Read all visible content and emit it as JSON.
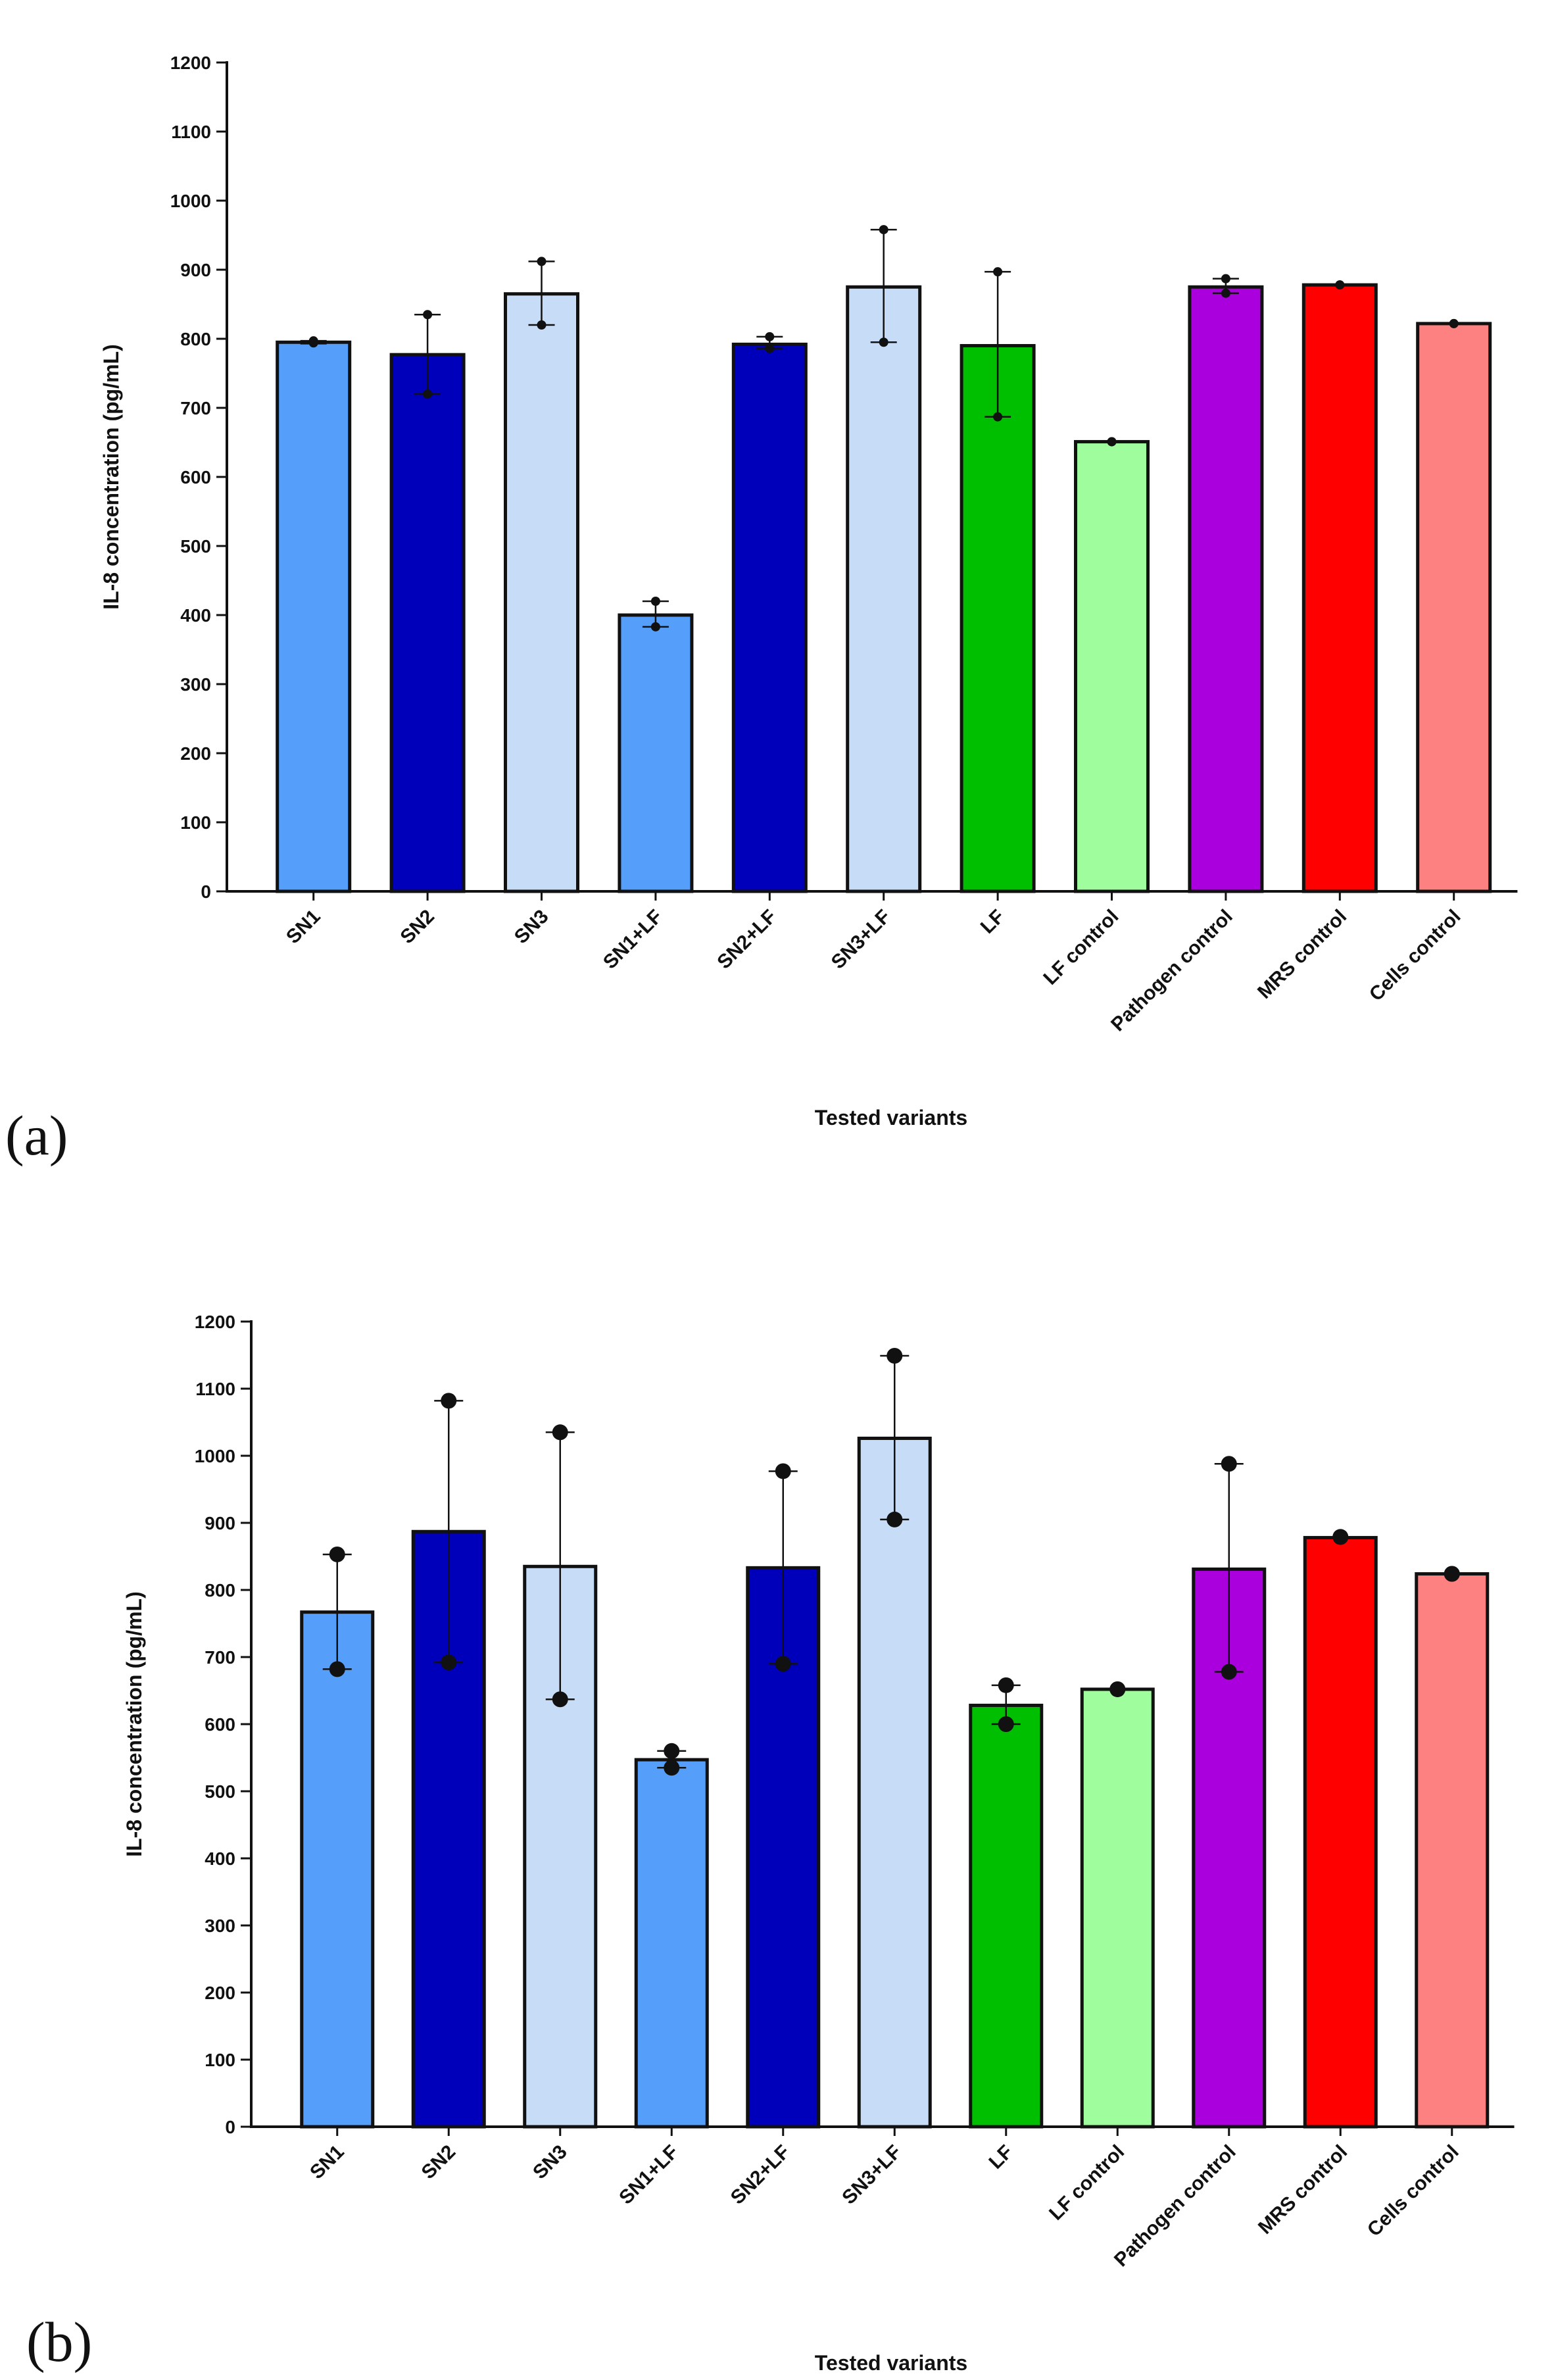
{
  "chart_data": [
    {
      "type": "bar",
      "panel_label": "(a)",
      "xlabel": "Tested variants",
      "ylabel": "IL-8 concentration (pg/mL)",
      "ylim": [
        0,
        1200
      ],
      "yticks": [
        "0",
        "100",
        "200",
        "300",
        "400",
        "500",
        "600",
        "700",
        "800",
        "900",
        "1000",
        "1100",
        "1200"
      ],
      "categories": [
        "SN1",
        "SN2",
        "SN3",
        "SN1+LF",
        "SN2+LF",
        "SN3+LF",
        "LF",
        "LF control",
        "Pathogen control",
        "MRS control",
        "Cells control"
      ],
      "values": [
        795,
        777,
        865,
        400,
        792,
        875,
        790,
        651,
        875,
        878,
        822
      ],
      "error_high": [
        797,
        835,
        912,
        420,
        803,
        958,
        897,
        652,
        887,
        879,
        823
      ],
      "error_low": [
        793,
        720,
        820,
        383,
        786,
        795,
        687,
        650,
        866,
        877,
        821
      ],
      "points": [
        [
          794,
          797
        ],
        [
          720,
          835
        ],
        [
          820,
          912
        ],
        [
          383,
          420
        ],
        [
          786,
          803
        ],
        [
          795,
          958
        ],
        [
          687,
          897
        ],
        [
          651,
          651
        ],
        [
          866,
          887
        ],
        [
          878,
          878
        ],
        [
          822,
          822
        ]
      ],
      "colors": [
        "#559ffa",
        "#0000bb",
        "#c7dcf7",
        "#559ffa",
        "#0000bb",
        "#c7dcf7",
        "#00bf00",
        "#a0fd9e",
        "#aa00dd",
        "#ff0000",
        "#fe8181"
      ],
      "grid": false
    },
    {
      "type": "bar",
      "panel_label": "(b)",
      "xlabel": "Tested variants",
      "ylabel": "IL-8 concentration (pg/mL)",
      "ylim": [
        0,
        1200
      ],
      "yticks": [
        "0",
        "100",
        "200",
        "300",
        "400",
        "500",
        "600",
        "700",
        "800",
        "900",
        "1000",
        "1100",
        "1200"
      ],
      "categories": [
        "SN1",
        "SN2",
        "SN3",
        "SN1+LF",
        "SN2+LF",
        "SN3+LF",
        "LF",
        "LF control",
        "Pathogen control",
        "MRS control",
        "Cells control"
      ],
      "values": [
        767,
        887,
        835,
        547,
        833,
        1026,
        628,
        652,
        831,
        878,
        824
      ],
      "error_high": [
        853,
        1082,
        1035,
        560,
        977,
        1149,
        658,
        653,
        988,
        879,
        825
      ],
      "error_low": [
        682,
        692,
        637,
        535,
        690,
        905,
        600,
        651,
        678,
        877,
        823
      ],
      "points": [
        [
          682,
          853
        ],
        [
          692,
          1082
        ],
        [
          637,
          1035
        ],
        [
          535,
          560
        ],
        [
          690,
          977
        ],
        [
          905,
          1149
        ],
        [
          600,
          658
        ],
        [
          652,
          652
        ],
        [
          678,
          988
        ],
        [
          879,
          879
        ],
        [
          824,
          824
        ]
      ],
      "colors": [
        "#559ffa",
        "#0000bb",
        "#c7dcf7",
        "#559ffa",
        "#0000bb",
        "#c7dcf7",
        "#00bf00",
        "#a0fd9e",
        "#aa00dd",
        "#ff0000",
        "#fe8181"
      ],
      "grid": false
    }
  ]
}
